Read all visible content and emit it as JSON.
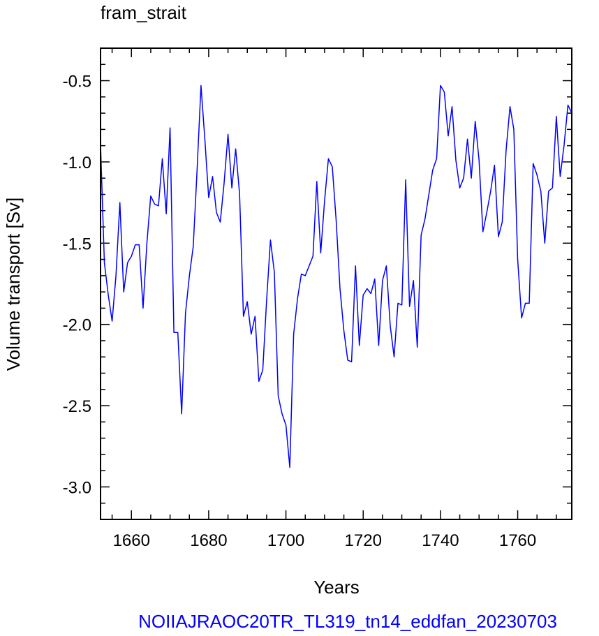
{
  "chart_data": {
    "type": "line",
    "title": "fram_strait",
    "xlabel": "Years",
    "ylabel": "Volume transport [Sv]",
    "footer": "NOIIAJRAOC20TR_TL319_tn14_eddfan_20230703",
    "xlim": [
      1652,
      1774
    ],
    "ylim": [
      -3.2,
      -0.3
    ],
    "xticks": [
      1660,
      1680,
      1700,
      1720,
      1740,
      1760
    ],
    "xtick_labels": [
      "1660",
      "1680",
      "1700",
      "1720",
      "1740",
      "1760"
    ],
    "yticks": [
      -0.5,
      -1.0,
      -1.5,
      -2.0,
      -2.5,
      -3.0
    ],
    "ytick_labels": [
      "-0.5",
      "-1.0",
      "-1.5",
      "-2.0",
      "-2.5",
      "-3.0"
    ],
    "grid": false,
    "series": [
      {
        "color": "#0000ff",
        "x": [
          1652,
          1653,
          1654,
          1655,
          1656,
          1657,
          1658,
          1659,
          1660,
          1661,
          1662,
          1663,
          1664,
          1665,
          1666,
          1667,
          1668,
          1669,
          1670,
          1671,
          1672,
          1673,
          1674,
          1675,
          1676,
          1677,
          1678,
          1679,
          1680,
          1681,
          1682,
          1683,
          1684,
          1685,
          1686,
          1687,
          1688,
          1689,
          1690,
          1691,
          1692,
          1693,
          1694,
          1695,
          1696,
          1697,
          1698,
          1699,
          1700,
          1701,
          1702,
          1703,
          1704,
          1705,
          1706,
          1707,
          1708,
          1709,
          1710,
          1711,
          1712,
          1713,
          1714,
          1715,
          1716,
          1717,
          1718,
          1719,
          1720,
          1721,
          1722,
          1723,
          1724,
          1725,
          1726,
          1727,
          1728,
          1729,
          1730,
          1731,
          1732,
          1733,
          1734,
          1735,
          1736,
          1737,
          1738,
          1739,
          1740,
          1741,
          1742,
          1743,
          1744,
          1745,
          1746,
          1747,
          1748,
          1749,
          1750,
          1751,
          1752,
          1753,
          1754,
          1755,
          1756,
          1757,
          1758,
          1759,
          1760,
          1761,
          1762,
          1763,
          1764,
          1765,
          1766,
          1767,
          1768,
          1769,
          1770,
          1771,
          1772,
          1773,
          1774
        ],
        "y": [
          -0.89,
          -1.62,
          -1.82,
          -1.98,
          -1.7,
          -1.25,
          -1.8,
          -1.62,
          -1.58,
          -1.51,
          -1.51,
          -1.9,
          -1.5,
          -1.21,
          -1.26,
          -1.27,
          -0.98,
          -1.32,
          -0.79,
          -2.05,
          -2.05,
          -2.55,
          -1.93,
          -1.7,
          -1.52,
          -1.05,
          -0.53,
          -0.86,
          -1.22,
          -1.09,
          -1.31,
          -1.37,
          -1.13,
          -0.83,
          -1.16,
          -0.92,
          -1.2,
          -1.95,
          -1.86,
          -2.06,
          -1.95,
          -2.35,
          -2.28,
          -1.85,
          -1.48,
          -1.68,
          -2.44,
          -2.55,
          -2.62,
          -2.88,
          -2.06,
          -1.84,
          -1.69,
          -1.7,
          -1.64,
          -1.58,
          -1.12,
          -1.56,
          -1.24,
          -0.98,
          -1.03,
          -1.36,
          -1.78,
          -2.04,
          -2.22,
          -2.23,
          -1.64,
          -2.13,
          -1.82,
          -1.78,
          -1.81,
          -1.72,
          -2.13,
          -1.73,
          -1.64,
          -2.01,
          -2.2,
          -1.87,
          -1.88,
          -1.11,
          -1.89,
          -1.73,
          -2.14,
          -1.45,
          -1.35,
          -1.2,
          -1.05,
          -0.98,
          -0.53,
          -0.57,
          -0.84,
          -0.66,
          -0.99,
          -1.16,
          -1.1,
          -0.86,
          -1.1,
          -0.75,
          -0.99,
          -1.43,
          -1.31,
          -1.18,
          -1.02,
          -1.46,
          -1.37,
          -0.93,
          -0.66,
          -0.8,
          -1.6,
          -1.96,
          -1.87,
          -1.87,
          -1.01,
          -1.08,
          -1.18,
          -1.5,
          -1.18,
          -1.16,
          -0.72,
          -1.09,
          -0.9,
          -0.65,
          -0.7
        ]
      }
    ]
  }
}
